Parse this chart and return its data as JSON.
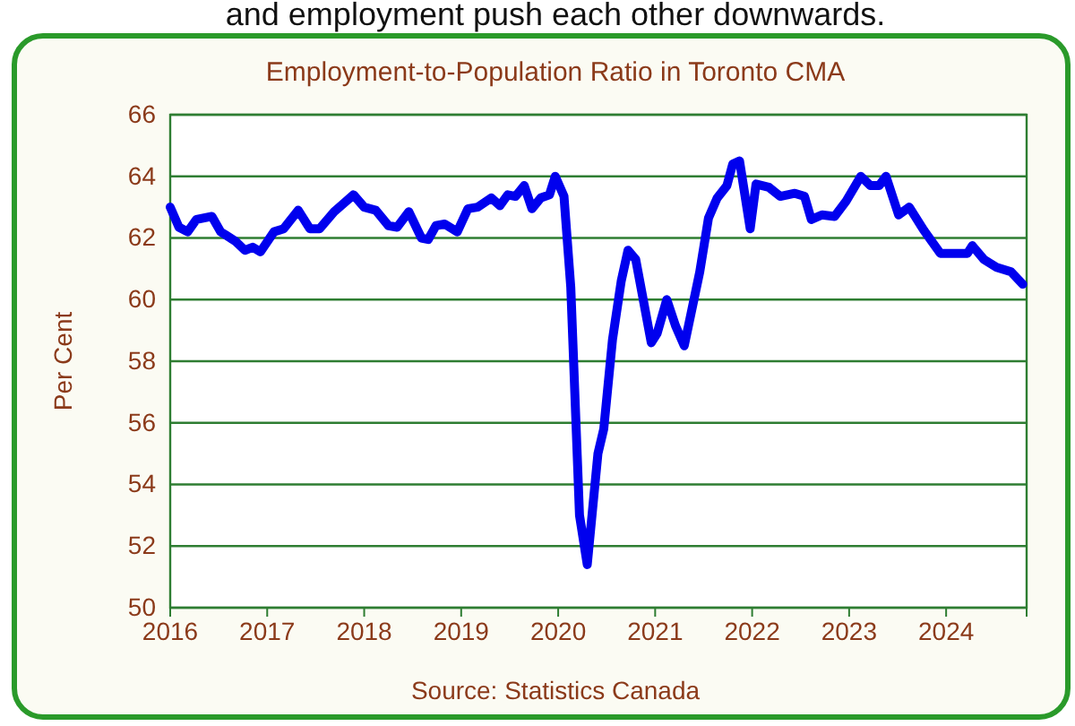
{
  "chart_data": {
    "type": "line",
    "title": "Employment-to-Population  Ratio in Toronto  CMA",
    "ylabel": "Per Cent",
    "annotations": [
      "and employment push each other downwards.",
      "Source:  Statistics Canada"
    ],
    "xlim": [
      2016,
      2024.83
    ],
    "xticks": [
      2016,
      2017,
      2018,
      2019,
      2020,
      2021,
      2022,
      2023,
      2024
    ],
    "ylim": [
      50,
      66
    ],
    "yticks": [
      50,
      52,
      54,
      56,
      58,
      60,
      62,
      64,
      66
    ],
    "grid": "y",
    "marker": "none",
    "line_style": "solid",
    "series": [
      {
        "color": "#0000ee",
        "x": [
          2016.0,
          2016.09,
          2016.18,
          2016.27,
          2016.43,
          2016.52,
          2016.67,
          2016.77,
          2016.85,
          2016.93,
          2017.07,
          2017.17,
          2017.32,
          2017.44,
          2017.54,
          2017.69,
          2017.78,
          2017.89,
          2018.0,
          2018.12,
          2018.25,
          2018.34,
          2018.46,
          2018.59,
          2018.66,
          2018.74,
          2018.83,
          2018.96,
          2019.07,
          2019.17,
          2019.31,
          2019.4,
          2019.48,
          2019.56,
          2019.65,
          2019.73,
          2019.82,
          2019.91,
          2019.97,
          2020.06,
          2020.13,
          2020.22,
          2020.3,
          2020.41,
          2020.47,
          2020.56,
          2020.65,
          2020.72,
          2020.8,
          2020.96,
          2021.02,
          2021.12,
          2021.21,
          2021.3,
          2021.46,
          2021.55,
          2021.64,
          2021.74,
          2021.8,
          2021.87,
          2021.98,
          2022.04,
          2022.17,
          2022.29,
          2022.44,
          2022.54,
          2022.61,
          2022.72,
          2022.85,
          2022.97,
          2023.12,
          2023.22,
          2023.31,
          2023.38,
          2023.51,
          2023.62,
          2023.77,
          2023.94,
          2024.11,
          2024.22,
          2024.27,
          2024.39,
          2024.52,
          2024.67,
          2024.79
        ],
        "values": [
          63.0,
          62.35,
          62.2,
          62.6,
          62.7,
          62.2,
          61.9,
          61.6,
          61.7,
          61.55,
          62.2,
          62.3,
          62.9,
          62.3,
          62.3,
          62.85,
          63.1,
          63.4,
          63.0,
          62.9,
          62.4,
          62.35,
          62.85,
          62.0,
          61.95,
          62.4,
          62.45,
          62.2,
          62.95,
          63.0,
          63.3,
          63.05,
          63.4,
          63.35,
          63.7,
          62.95,
          63.3,
          63.4,
          64.0,
          63.35,
          60.4,
          53.0,
          51.4,
          55.0,
          55.8,
          58.7,
          60.6,
          61.6,
          61.3,
          58.6,
          58.9,
          60.0,
          59.15,
          58.5,
          60.9,
          62.65,
          63.3,
          63.7,
          64.4,
          64.5,
          62.3,
          63.75,
          63.65,
          63.35,
          63.45,
          63.35,
          62.6,
          62.75,
          62.7,
          63.2,
          64.0,
          63.7,
          63.7,
          64.0,
          62.75,
          63.0,
          62.25,
          61.5,
          61.5,
          61.5,
          61.75,
          61.3,
          61.05,
          60.9,
          60.5
        ]
      }
    ]
  }
}
